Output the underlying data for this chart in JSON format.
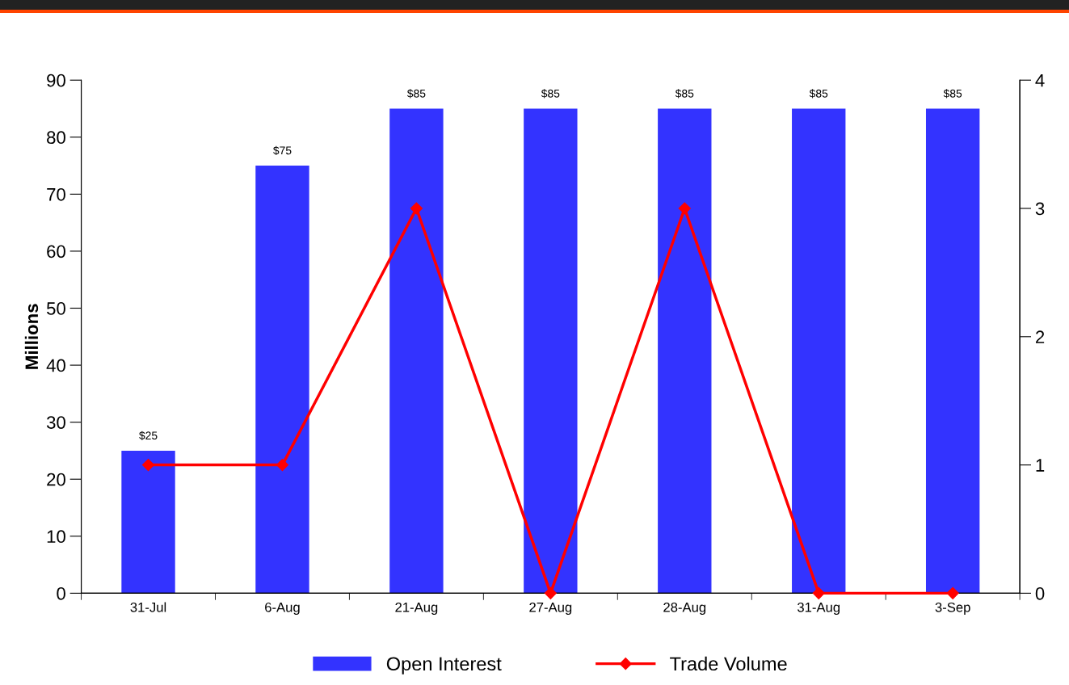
{
  "chart_data": {
    "type": "bar",
    "ylabel": "Millions",
    "categories": [
      "31-Jul",
      "6-Aug",
      "21-Aug",
      "27-Aug",
      "28-Aug",
      "31-Aug",
      "3-Sep"
    ],
    "series": [
      {
        "name": "Open Interest",
        "color": "#3333ff",
        "values": [
          25,
          75,
          85,
          85,
          85,
          85,
          85
        ],
        "value_labels": [
          "$25",
          "$75",
          "$85",
          "$85",
          "$85",
          "$85",
          "$85"
        ]
      },
      {
        "name": "Trade Volume",
        "type": "line",
        "axis": "y2",
        "color": "#ff0000",
        "marker": "diamond",
        "line_style": "solid",
        "values": [
          1,
          1,
          3,
          0,
          3,
          0,
          0
        ]
      }
    ],
    "ylim": [
      0,
      90
    ],
    "yticks": [
      0,
      10,
      20,
      30,
      40,
      50,
      60,
      70,
      80,
      90
    ],
    "y2lim": [
      0,
      4
    ],
    "y2ticks": [
      0,
      1,
      2,
      3,
      4
    ],
    "grid": false,
    "legend": "bottom"
  }
}
